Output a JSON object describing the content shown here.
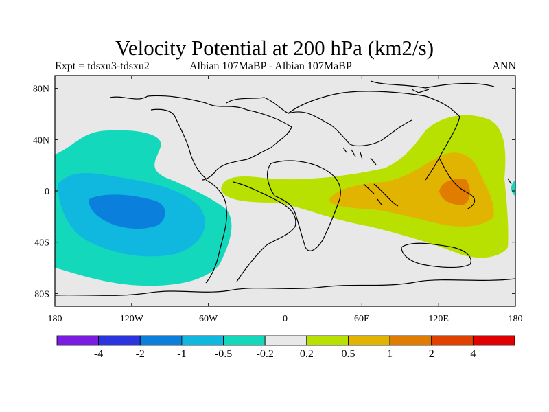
{
  "header": {
    "title": "Velocity Potential at 200 hPa (km2/s)",
    "left": "Expt = tdsxu3-tdsxu2",
    "center": "Albian   107MaBP - Albian   107MaBP",
    "right": "ANN"
  },
  "map": {
    "projection": "cylindrical equidistant",
    "lon_range": [
      -180,
      180
    ],
    "lat_range": [
      -90,
      90
    ],
    "x_ticks": [
      {
        "lon": -180,
        "label": "180"
      },
      {
        "lon": -120,
        "label": "120W"
      },
      {
        "lon": -60,
        "label": "60W"
      },
      {
        "lon": 0,
        "label": "0"
      },
      {
        "lon": 60,
        "label": "60E"
      },
      {
        "lon": 120,
        "label": "120E"
      },
      {
        "lon": 180,
        "label": "180"
      }
    ],
    "y_ticks": [
      {
        "lat": 80,
        "label": "80N"
      },
      {
        "lat": 40,
        "label": "40N"
      },
      {
        "lat": 0,
        "label": "0"
      },
      {
        "lat": -40,
        "label": "40S"
      },
      {
        "lat": -80,
        "label": "80S"
      }
    ],
    "background_color": "#e8e8e8"
  },
  "colorbar": {
    "colors": [
      "#7a1de0",
      "#2a35e0",
      "#0a7fdc",
      "#10b8e0",
      "#14d8bc",
      "#e8e8e8",
      "#b8e000",
      "#e0b400",
      "#e07c00",
      "#e04000",
      "#e00000"
    ],
    "labels": [
      "-4",
      "-2",
      "-1",
      "-0.5",
      "-0.2",
      "0.2",
      "0.5",
      "1",
      "2",
      "4"
    ]
  },
  "contours": {
    "negative_center": {
      "lon": -120,
      "lat": -15
    },
    "positive_center": {
      "lon": 135,
      "lat": 0
    }
  }
}
